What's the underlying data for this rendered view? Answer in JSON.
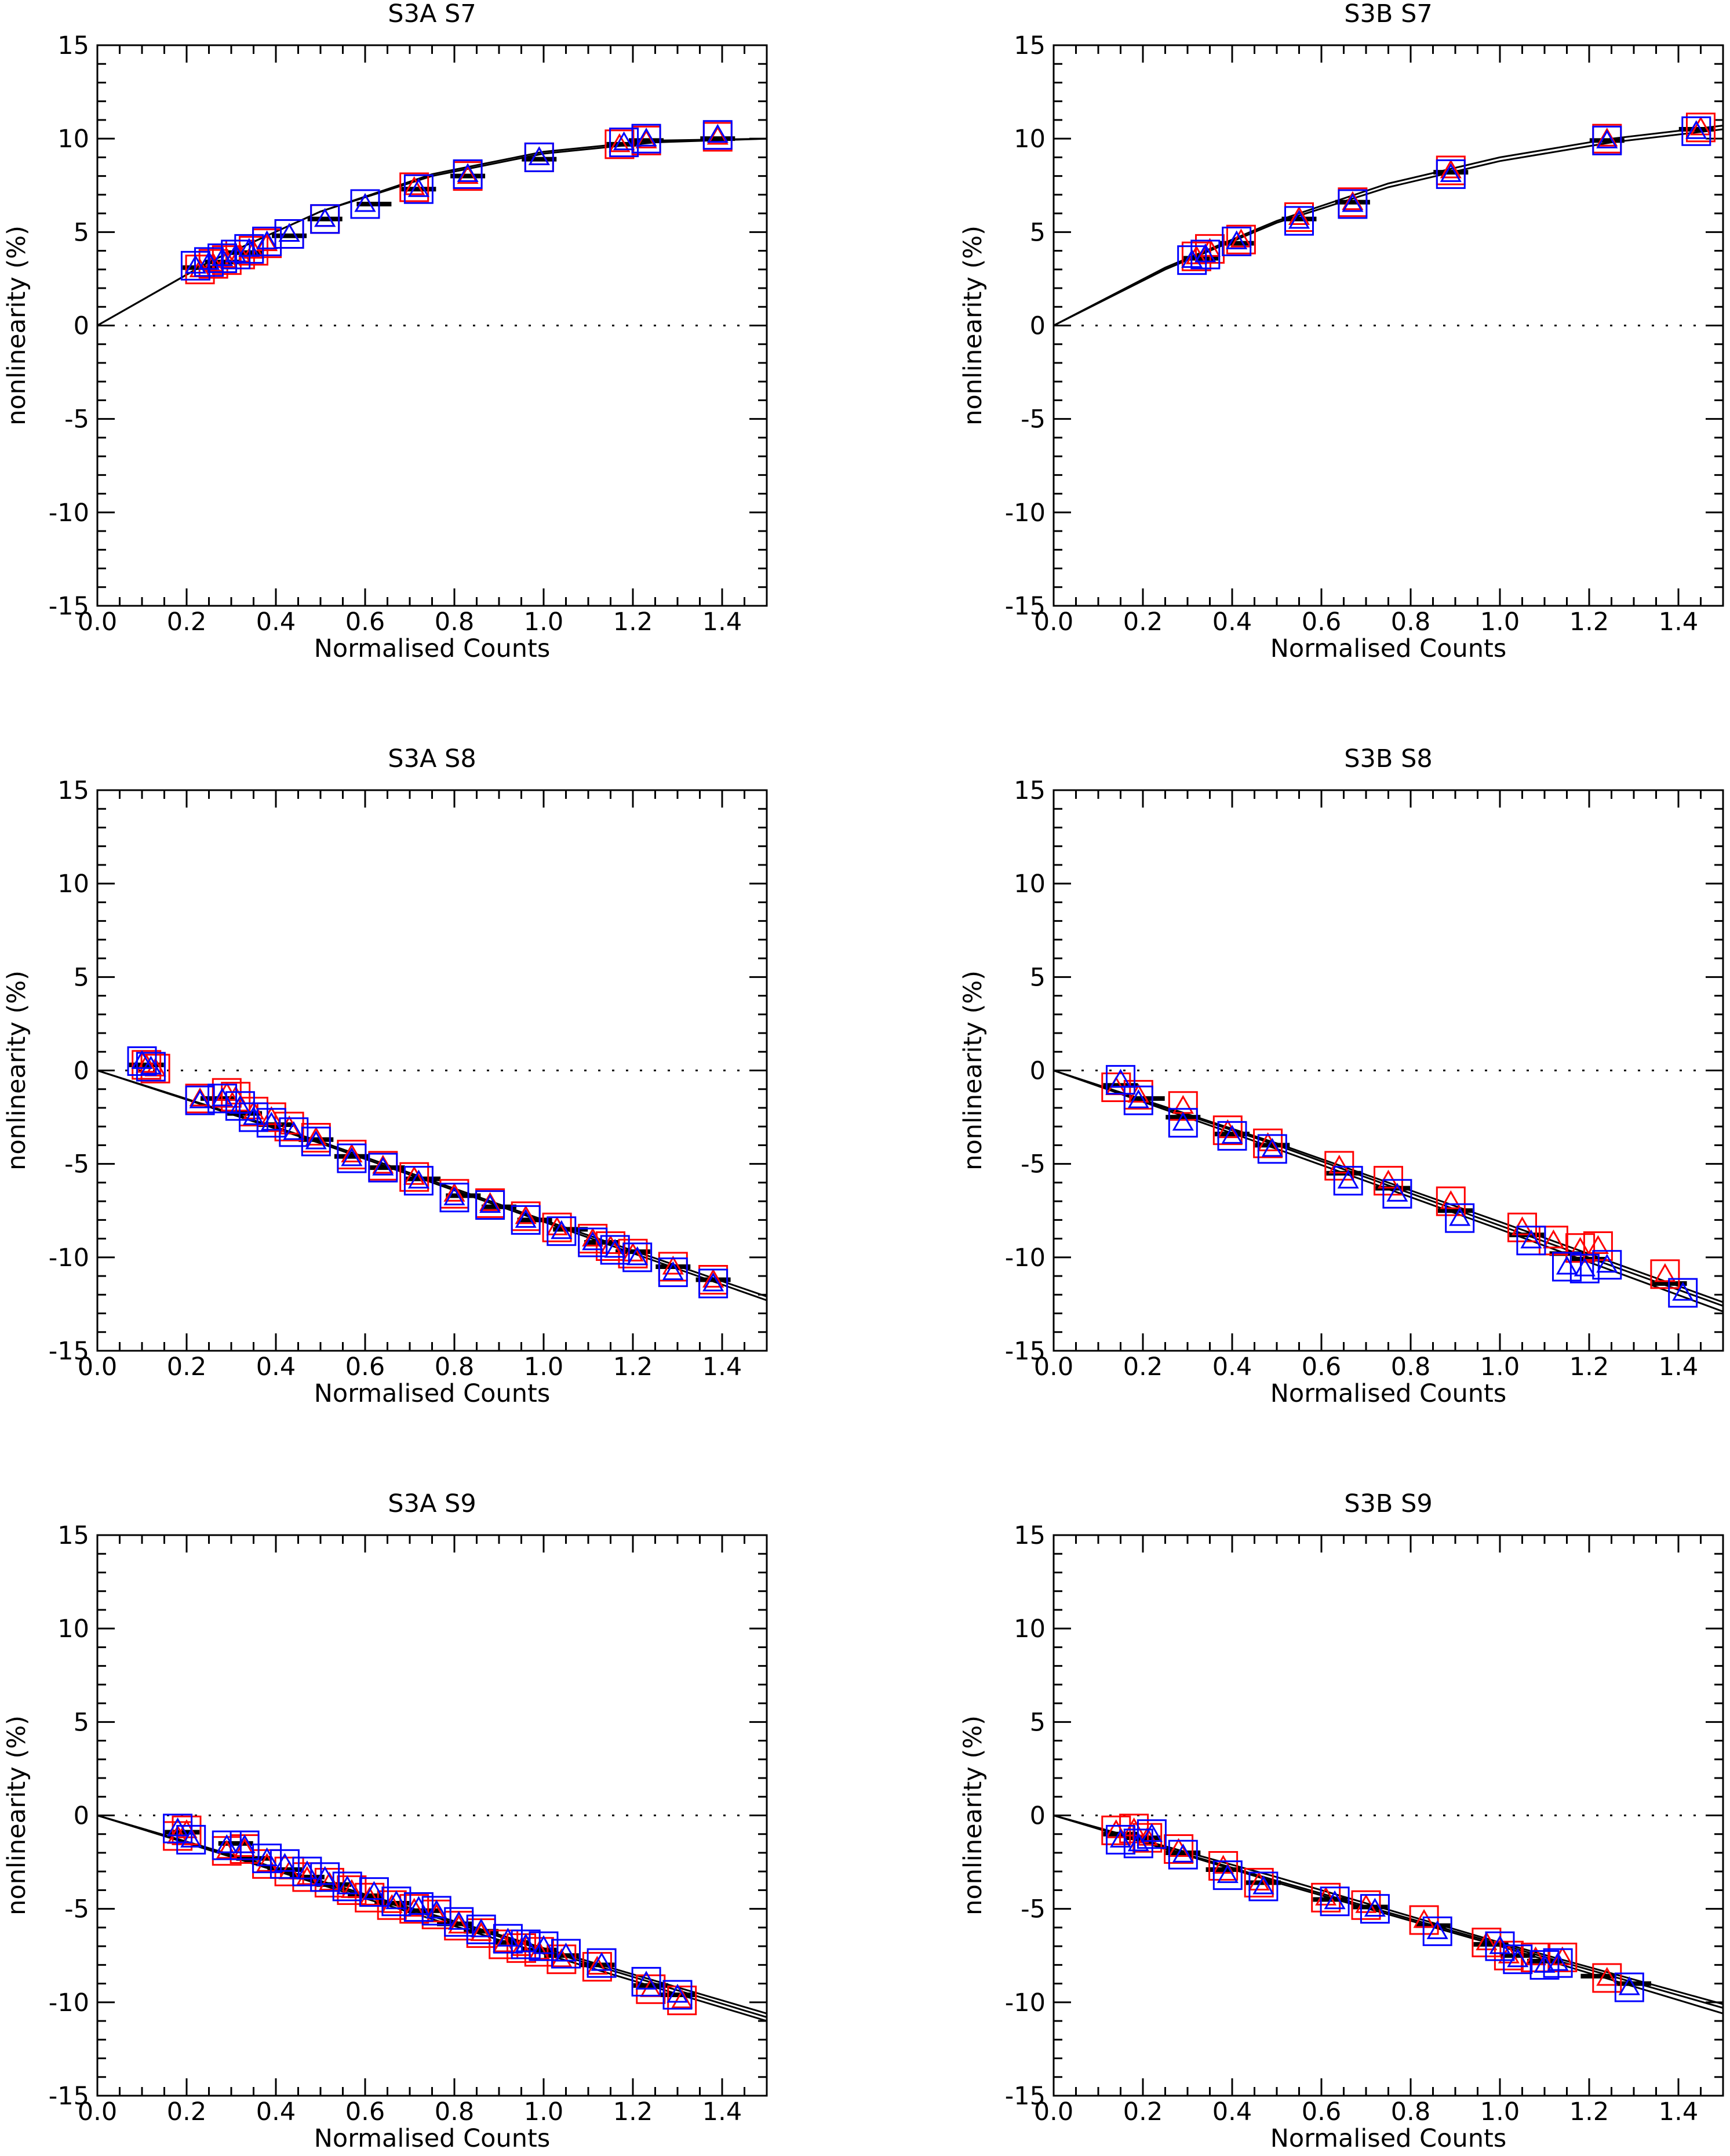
{
  "colors": {
    "red": "#ff0000",
    "blue": "#0000ff",
    "black": "#000000"
  },
  "chart_data": [
    {
      "type": "scatter",
      "title": "S3A S7",
      "xlabel": "Normalised Counts",
      "ylabel": "nonlinearity (%)",
      "xlim": [
        0.0,
        1.5
      ],
      "ylim": [
        -15,
        15
      ],
      "xticks": [
        "0.0",
        "0.2",
        "0.4",
        "0.6",
        "0.8",
        "1.0",
        "1.2",
        "1.4"
      ],
      "yticks": [
        "15",
        "10",
        "5",
        "0",
        "-5",
        "-10",
        "-15"
      ],
      "zero_line": "dotted",
      "fit_curves": [
        {
          "name": "fit-a",
          "x": [
            0.0,
            0.25,
            0.5,
            0.75,
            1.0,
            1.25,
            1.5
          ],
          "y": [
            0.0,
            3.4,
            6.1,
            8.1,
            9.3,
            9.9,
            10.0
          ]
        },
        {
          "name": "fit-b",
          "x": [
            0.0,
            0.25,
            0.5,
            0.75,
            1.0,
            1.25,
            1.5
          ],
          "y": [
            0.0,
            3.4,
            6.1,
            8.0,
            9.2,
            9.8,
            10.0
          ]
        }
      ],
      "series": [
        {
          "name": "red",
          "x": [
            0.23,
            0.26,
            0.29,
            0.32,
            0.35,
            0.38,
            0.43,
            0.51,
            0.6,
            0.71,
            0.83,
            0.99,
            1.17,
            1.23,
            1.39
          ],
          "y": [
            3.0,
            3.3,
            3.5,
            3.8,
            4.0,
            4.4,
            4.9,
            5.7,
            6.5,
            7.4,
            8.0,
            9.0,
            9.7,
            9.9,
            10.1
          ]
        },
        {
          "name": "blue",
          "x": [
            0.22,
            0.25,
            0.28,
            0.31,
            0.34,
            0.38,
            0.43,
            0.51,
            0.6,
            0.72,
            0.83,
            0.99,
            1.18,
            1.23,
            1.39
          ],
          "y": [
            3.2,
            3.4,
            3.6,
            3.8,
            4.1,
            4.5,
            4.9,
            5.7,
            6.5,
            7.3,
            8.1,
            9.0,
            9.8,
            10.0,
            10.2
          ]
        }
      ],
      "black_marks": {
        "x": [
          0.23,
          0.28,
          0.33,
          0.43,
          0.51,
          0.62,
          0.72,
          0.83,
          0.99,
          1.18,
          1.23,
          1.39
        ],
        "y": [
          3.1,
          3.4,
          3.9,
          4.8,
          5.7,
          6.5,
          7.3,
          8.0,
          8.9,
          9.7,
          9.9,
          10.0
        ]
      }
    },
    {
      "type": "scatter",
      "title": "S3B S7",
      "xlabel": "Normalised Counts",
      "ylabel": "nonlinearity (%)",
      "xlim": [
        0.0,
        1.5
      ],
      "ylim": [
        -15,
        15
      ],
      "xticks": [
        "0.0",
        "0.2",
        "0.4",
        "0.6",
        "0.8",
        "1.0",
        "1.2",
        "1.4"
      ],
      "yticks": [
        "15",
        "10",
        "5",
        "0",
        "-5",
        "-10",
        "-15"
      ],
      "zero_line": "dotted",
      "fit_curves": [
        {
          "name": "fit-a",
          "x": [
            0.0,
            0.25,
            0.5,
            0.75,
            1.0,
            1.25,
            1.5
          ],
          "y": [
            0.0,
            3.1,
            5.6,
            7.6,
            9.0,
            10.0,
            10.7
          ]
        },
        {
          "name": "fit-b",
          "x": [
            0.0,
            0.25,
            0.5,
            0.75,
            1.0,
            1.25,
            1.5
          ],
          "y": [
            0.0,
            3.0,
            5.5,
            7.4,
            8.8,
            9.8,
            10.5
          ]
        }
      ],
      "series": [
        {
          "name": "red",
          "x": [
            0.32,
            0.35,
            0.42,
            0.55,
            0.67,
            0.89,
            1.24,
            1.45
          ],
          "y": [
            3.7,
            4.1,
            4.6,
            5.8,
            6.6,
            8.3,
            10.0,
            10.6
          ]
        },
        {
          "name": "blue",
          "x": [
            0.31,
            0.34,
            0.41,
            0.55,
            0.67,
            0.89,
            1.24,
            1.44
          ],
          "y": [
            3.5,
            3.8,
            4.5,
            5.6,
            6.5,
            8.1,
            9.9,
            10.4
          ]
        }
      ],
      "black_marks": {
        "x": [
          0.33,
          0.41,
          0.55,
          0.67,
          0.89,
          1.24,
          1.44
        ],
        "y": [
          3.6,
          4.4,
          5.7,
          6.6,
          8.2,
          9.9,
          10.5
        ]
      }
    },
    {
      "type": "scatter",
      "title": "S3A S8",
      "xlabel": "Normalised Counts",
      "ylabel": "nonlinearity (%)",
      "xlim": [
        0.0,
        1.5
      ],
      "ylim": [
        -15,
        15
      ],
      "xticks": [
        "0.0",
        "0.2",
        "0.4",
        "0.6",
        "0.8",
        "1.0",
        "1.2",
        "1.4"
      ],
      "yticks": [
        "15",
        "10",
        "5",
        "0",
        "-5",
        "-10",
        "-15"
      ],
      "zero_line": "dotted",
      "fit_curves": [
        {
          "name": "fit-a",
          "x": [
            0.0,
            0.5,
            1.0,
            1.5
          ],
          "y": [
            0.0,
            -3.9,
            -8.1,
            -12.3
          ]
        },
        {
          "name": "fit-b",
          "x": [
            0.0,
            0.5,
            1.0,
            1.5
          ],
          "y": [
            0.0,
            -3.8,
            -8.0,
            -12.1
          ]
        }
      ],
      "series": [
        {
          "name": "red",
          "x": [
            0.11,
            0.13,
            0.23,
            0.29,
            0.31,
            0.35,
            0.39,
            0.43,
            0.49,
            0.57,
            0.64,
            0.71,
            0.8,
            0.88,
            0.96,
            1.03,
            1.11,
            1.15,
            1.2,
            1.29,
            1.38
          ],
          "y": [
            0.3,
            0.1,
            -1.5,
            -1.2,
            -1.4,
            -2.2,
            -2.5,
            -3.0,
            -3.6,
            -4.5,
            -5.1,
            -5.7,
            -6.6,
            -7.1,
            -7.8,
            -8.4,
            -9.0,
            -9.4,
            -9.8,
            -10.5,
            -11.2
          ]
        },
        {
          "name": "blue",
          "x": [
            0.1,
            0.12,
            0.23,
            0.28,
            0.32,
            0.35,
            0.39,
            0.44,
            0.49,
            0.57,
            0.64,
            0.72,
            0.8,
            0.88,
            0.96,
            1.04,
            1.11,
            1.16,
            1.21,
            1.29,
            1.38
          ],
          "y": [
            0.5,
            0.2,
            -1.6,
            -1.5,
            -1.9,
            -2.5,
            -2.8,
            -3.3,
            -3.8,
            -4.7,
            -5.2,
            -5.9,
            -6.8,
            -7.2,
            -8.0,
            -8.6,
            -9.2,
            -9.6,
            -10.0,
            -10.8,
            -11.4
          ]
        }
      ],
      "black_marks": {
        "x": [
          0.11,
          0.27,
          0.33,
          0.4,
          0.49,
          0.57,
          0.65,
          0.73,
          0.82,
          0.9,
          0.98,
          1.06,
          1.13,
          1.2,
          1.29,
          1.38
        ],
        "y": [
          0.3,
          -1.5,
          -2.3,
          -2.9,
          -3.7,
          -4.6,
          -5.2,
          -5.8,
          -6.7,
          -7.3,
          -8.0,
          -8.5,
          -9.2,
          -9.7,
          -10.5,
          -11.2
        ]
      }
    },
    {
      "type": "scatter",
      "title": "S3B S8",
      "xlabel": "Normalised Counts",
      "ylabel": "nonlinearity (%)",
      "xlim": [
        0.0,
        1.5
      ],
      "ylim": [
        -15,
        15
      ],
      "xticks": [
        "0.0",
        "0.2",
        "0.4",
        "0.6",
        "0.8",
        "1.0",
        "1.2",
        "1.4"
      ],
      "yticks": [
        "15",
        "10",
        "5",
        "0",
        "-5",
        "-10",
        "-15"
      ],
      "zero_line": "dotted",
      "fit_curves": [
        {
          "name": "fit-a",
          "x": [
            0.0,
            0.5,
            1.0,
            1.5
          ],
          "y": [
            0.0,
            -4.2,
            -8.5,
            -12.9
          ]
        },
        {
          "name": "fit-b",
          "x": [
            0.0,
            0.5,
            1.0,
            1.5
          ],
          "y": [
            0.0,
            -4.0,
            -8.3,
            -12.6
          ]
        },
        {
          "name": "fit-c",
          "x": [
            0.0,
            0.5,
            1.0,
            1.5
          ],
          "y": [
            0.0,
            -3.9,
            -8.1,
            -12.4
          ]
        }
      ],
      "series": [
        {
          "name": "red",
          "x": [
            0.14,
            0.19,
            0.29,
            0.39,
            0.48,
            0.64,
            0.75,
            0.89,
            1.05,
            1.12,
            1.18,
            1.22,
            1.37
          ],
          "y": [
            -0.9,
            -1.3,
            -1.9,
            -3.2,
            -3.9,
            -5.1,
            -5.9,
            -7.0,
            -8.4,
            -9.1,
            -9.5,
            -9.4,
            -10.9
          ]
        },
        {
          "name": "blue",
          "x": [
            0.15,
            0.19,
            0.29,
            0.4,
            0.49,
            0.66,
            0.77,
            0.91,
            1.07,
            1.15,
            1.19,
            1.24,
            1.41
          ],
          "y": [
            -0.5,
            -1.6,
            -2.8,
            -3.5,
            -4.2,
            -5.9,
            -6.6,
            -7.9,
            -9.1,
            -10.5,
            -10.6,
            -10.4,
            -11.9
          ]
        }
      ],
      "black_marks": {
        "x": [
          0.15,
          0.21,
          0.29,
          0.4,
          0.49,
          0.65,
          0.76,
          0.9,
          1.06,
          1.15,
          1.2,
          1.38
        ],
        "y": [
          -0.8,
          -1.5,
          -2.5,
          -3.4,
          -4.0,
          -5.5,
          -6.3,
          -7.5,
          -8.8,
          -9.8,
          -10.1,
          -11.4
        ]
      }
    },
    {
      "type": "scatter",
      "title": "S3A S9",
      "xlabel": "Normalised Counts",
      "ylabel": "nonlinearity (%)",
      "xlim": [
        0.0,
        1.5
      ],
      "ylim": [
        -15,
        15
      ],
      "xticks": [
        "0.0",
        "0.2",
        "0.4",
        "0.6",
        "0.8",
        "1.0",
        "1.2",
        "1.4"
      ],
      "yticks": [
        "15",
        "10",
        "5",
        "0",
        "-5",
        "-10",
        "-15"
      ],
      "zero_line": "dotted",
      "fit_curves": [
        {
          "name": "fit-a",
          "x": [
            0.0,
            0.5,
            1.0,
            1.5
          ],
          "y": [
            0.0,
            -3.7,
            -7.4,
            -11.0
          ]
        },
        {
          "name": "fit-b",
          "x": [
            0.0,
            0.5,
            1.0,
            1.5
          ],
          "y": [
            0.0,
            -3.6,
            -7.2,
            -10.8
          ]
        },
        {
          "name": "fit-c",
          "x": [
            0.0,
            0.5,
            1.0,
            1.5
          ],
          "y": [
            0.0,
            -3.5,
            -7.1,
            -10.6
          ]
        }
      ],
      "series": [
        {
          "name": "red",
          "x": [
            0.18,
            0.2,
            0.29,
            0.33,
            0.38,
            0.43,
            0.47,
            0.52,
            0.57,
            0.61,
            0.66,
            0.71,
            0.76,
            0.81,
            0.86,
            0.91,
            0.95,
            0.99,
            1.04,
            1.12,
            1.24,
            1.31
          ],
          "y": [
            -1.1,
            -0.8,
            -1.9,
            -1.8,
            -2.6,
            -3.0,
            -3.3,
            -3.6,
            -4.0,
            -4.4,
            -4.8,
            -5.0,
            -5.3,
            -5.9,
            -6.3,
            -6.9,
            -7.1,
            -7.3,
            -7.7,
            -8.1,
            -9.3,
            -9.9
          ]
        },
        {
          "name": "blue",
          "x": [
            0.18,
            0.21,
            0.29,
            0.33,
            0.38,
            0.42,
            0.47,
            0.51,
            0.56,
            0.62,
            0.67,
            0.72,
            0.76,
            0.81,
            0.86,
            0.92,
            0.96,
            1.0,
            1.05,
            1.13,
            1.23,
            1.3
          ],
          "y": [
            -0.7,
            -1.3,
            -1.6,
            -1.6,
            -2.3,
            -2.6,
            -3.0,
            -3.3,
            -3.8,
            -4.1,
            -4.6,
            -4.9,
            -5.1,
            -5.7,
            -6.1,
            -6.6,
            -6.9,
            -7.0,
            -7.4,
            -7.9,
            -8.9,
            -9.6
          ]
        }
      ],
      "black_marks": {
        "x": [
          0.19,
          0.31,
          0.35,
          0.42,
          0.47,
          0.53,
          0.6,
          0.66,
          0.73,
          0.8,
          0.86,
          0.93,
          0.99,
          1.04,
          1.12,
          1.24,
          1.3
        ],
        "y": [
          -0.9,
          -1.5,
          -2.3,
          -2.9,
          -3.3,
          -3.7,
          -4.3,
          -4.7,
          -5.1,
          -5.8,
          -6.2,
          -6.8,
          -7.2,
          -7.5,
          -8.0,
          -9.1,
          -9.6
        ]
      }
    },
    {
      "type": "scatter",
      "title": "S3B S9",
      "xlabel": "Normalised Counts",
      "ylabel": "nonlinearity (%)",
      "xlim": [
        0.0,
        1.5
      ],
      "ylim": [
        -15,
        15
      ],
      "xticks": [
        "0.0",
        "0.2",
        "0.4",
        "0.6",
        "0.8",
        "1.0",
        "1.2",
        "1.4"
      ],
      "yticks": [
        "15",
        "10",
        "5",
        "0",
        "-5",
        "-10",
        "-15"
      ],
      "zero_line": "dotted",
      "fit_curves": [
        {
          "name": "fit-a",
          "x": [
            0.0,
            0.5,
            1.0,
            1.5
          ],
          "y": [
            0.0,
            -3.6,
            -7.0,
            -10.6
          ]
        },
        {
          "name": "fit-b",
          "x": [
            0.0,
            0.5,
            1.0,
            1.5
          ],
          "y": [
            0.0,
            -3.5,
            -6.9,
            -10.3
          ]
        },
        {
          "name": "fit-c",
          "x": [
            0.0,
            0.5,
            1.0,
            1.5
          ],
          "y": [
            0.0,
            -3.3,
            -6.8,
            -10.1
          ]
        }
      ],
      "series": [
        {
          "name": "red",
          "x": [
            0.14,
            0.18,
            0.21,
            0.28,
            0.38,
            0.46,
            0.61,
            0.7,
            0.83,
            0.97,
            1.02,
            1.08,
            1.14,
            1.24
          ],
          "y": [
            -0.8,
            -0.7,
            -1.2,
            -1.8,
            -2.7,
            -3.6,
            -4.4,
            -4.8,
            -5.6,
            -6.8,
            -7.5,
            -7.6,
            -7.6,
            -8.7
          ]
        },
        {
          "name": "blue",
          "x": [
            0.15,
            0.19,
            0.22,
            0.29,
            0.39,
            0.47,
            0.63,
            0.72,
            0.86,
            1.0,
            1.04,
            1.1,
            1.13,
            1.29
          ],
          "y": [
            -1.3,
            -1.5,
            -1.0,
            -2.1,
            -3.2,
            -3.8,
            -4.6,
            -5.0,
            -6.2,
            -7.0,
            -7.7,
            -8.0,
            -7.9,
            -9.2
          ]
        }
      ],
      "black_marks": {
        "x": [
          0.15,
          0.2,
          0.29,
          0.38,
          0.47,
          0.62,
          0.71,
          0.85,
          0.98,
          1.04,
          1.1,
          1.22,
          1.3
        ],
        "y": [
          -1.0,
          -1.2,
          -2.0,
          -2.9,
          -3.6,
          -4.5,
          -4.9,
          -5.9,
          -6.9,
          -7.5,
          -7.8,
          -8.6,
          -9.0
        ]
      }
    }
  ]
}
